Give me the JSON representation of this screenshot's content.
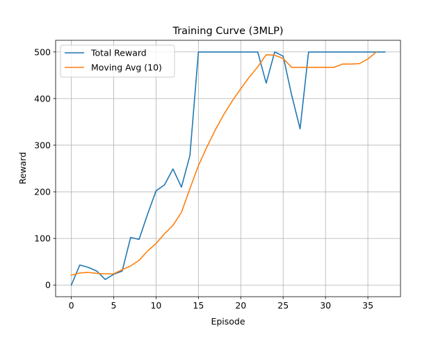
{
  "chart_data": {
    "type": "line",
    "title": "Training Curve (3MLP)",
    "xlabel": "Episode",
    "ylabel": "Reward",
    "xlim": [
      -1.85,
      38.85
    ],
    "ylim": [
      -25,
      525
    ],
    "xticks": [
      0,
      5,
      10,
      15,
      20,
      25,
      30,
      35
    ],
    "xtick_labels": [
      "0",
      "5",
      "10",
      "15",
      "20",
      "25",
      "30",
      "35"
    ],
    "yticks": [
      0,
      100,
      200,
      300,
      400,
      500
    ],
    "ytick_labels": [
      "0",
      "100",
      "200",
      "300",
      "400",
      "500"
    ],
    "grid": true,
    "legend_position": "top-left",
    "series": [
      {
        "name": "Total Reward",
        "color": "#1f77b4",
        "x": [
          0,
          1,
          2,
          3,
          4,
          5,
          6,
          7,
          8,
          9,
          10,
          11,
          12,
          13,
          14,
          15,
          16,
          17,
          18,
          19,
          20,
          21,
          22,
          23,
          24,
          25,
          26,
          27,
          28,
          29,
          30,
          31,
          32,
          33,
          34,
          35,
          36,
          37
        ],
        "values": [
          0,
          43,
          38,
          30,
          12,
          23,
          30,
          102,
          98,
          152,
          202,
          215,
          249,
          210,
          278,
          500,
          500,
          500,
          500,
          500,
          500,
          500,
          500,
          433,
          500,
          491,
          408,
          335,
          500,
          500,
          500,
          500,
          500,
          500,
          500,
          500,
          500,
          500
        ]
      },
      {
        "name": "Moving Avg (10)",
        "color": "#ff7f0e",
        "x": [
          0,
          1,
          2,
          3,
          4,
          5,
          6,
          7,
          8,
          9,
          10,
          11,
          12,
          13,
          14,
          15,
          16,
          17,
          18,
          19,
          20,
          21,
          22,
          23,
          24,
          25,
          26,
          27,
          28,
          29,
          30,
          31,
          32,
          33,
          34,
          35,
          36
        ],
        "values": [
          21,
          26,
          27,
          25,
          24,
          24,
          33,
          41,
          53,
          73,
          89,
          110,
          128,
          156,
          207,
          256,
          296,
          333,
          366,
          395,
          421,
          446,
          468,
          494,
          493,
          486,
          467,
          467,
          467,
          467,
          467,
          467,
          474,
          474,
          475,
          485,
          500
        ]
      }
    ]
  }
}
